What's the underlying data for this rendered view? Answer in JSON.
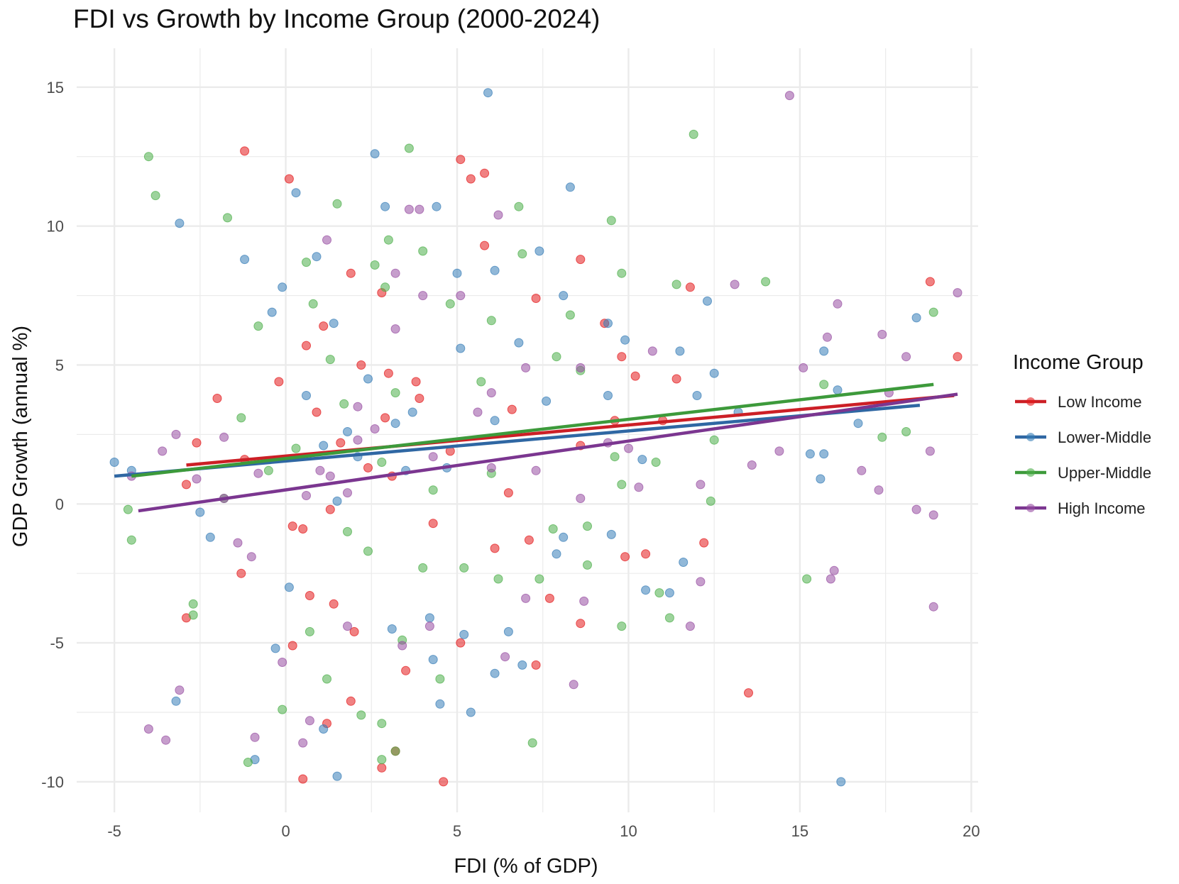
{
  "chart_data": {
    "type": "scatter",
    "title": "FDI vs Growth by Income Group (2000-2024)",
    "xlabel": "FDI (% of GDP)",
    "ylabel": "GDP Growth (annual %)",
    "xlim": [
      -6.1,
      20.2
    ],
    "ylim": [
      -11.1,
      16.4
    ],
    "x_ticks": [
      -5,
      0,
      5,
      10,
      15,
      20
    ],
    "x_tick_labels": [
      "-5",
      "0",
      "5",
      "10",
      "15",
      "20"
    ],
    "y_ticks": [
      -10,
      -5,
      0,
      5,
      10,
      15
    ],
    "y_tick_labels": [
      "-10",
      "-5",
      "0",
      "5",
      "10",
      "15"
    ],
    "grid": true,
    "legend": {
      "title": "Income Group",
      "placement": "right"
    },
    "series": [
      {
        "name": "Low Income",
        "color": "#e41a1c",
        "fit_line": {
          "x": [
            -2.9,
            19.5
          ],
          "y": [
            1.4,
            3.9
          ]
        },
        "points": [
          [
            -1.2,
            12.7
          ],
          [
            0.1,
            11.7
          ],
          [
            5.1,
            12.4
          ],
          [
            5.8,
            11.9
          ],
          [
            5.4,
            11.7
          ],
          [
            8.6,
            8.8
          ],
          [
            5.8,
            9.3
          ],
          [
            7.3,
            7.4
          ],
          [
            11.8,
            7.8
          ],
          [
            18.8,
            8.0
          ],
          [
            19.6,
            5.3
          ],
          [
            9.8,
            5.3
          ],
          [
            10.2,
            4.6
          ],
          [
            11.4,
            4.5
          ],
          [
            9.3,
            6.5
          ],
          [
            3.9,
            3.8
          ],
          [
            3.0,
            4.7
          ],
          [
            2.2,
            5.0
          ],
          [
            1.1,
            6.4
          ],
          [
            0.6,
            5.7
          ],
          [
            -0.2,
            4.4
          ],
          [
            -2.0,
            3.8
          ],
          [
            -2.6,
            2.2
          ],
          [
            -2.9,
            0.7
          ],
          [
            -1.2,
            1.6
          ],
          [
            0.2,
            -0.8
          ],
          [
            0.5,
            -0.9
          ],
          [
            1.3,
            -0.2
          ],
          [
            6.5,
            0.4
          ],
          [
            7.1,
            -1.3
          ],
          [
            6.1,
            -1.6
          ],
          [
            9.9,
            -1.9
          ],
          [
            12.2,
            -1.4
          ],
          [
            10.5,
            -1.8
          ],
          [
            7.7,
            -3.4
          ],
          [
            8.6,
            -4.3
          ],
          [
            7.3,
            -5.8
          ],
          [
            13.5,
            -6.8
          ],
          [
            4.6,
            -10.0
          ],
          [
            0.5,
            -9.9
          ],
          [
            2.8,
            -9.5
          ],
          [
            3.2,
            -8.9
          ],
          [
            1.2,
            -7.9
          ],
          [
            1.9,
            -7.1
          ],
          [
            3.5,
            -6.0
          ],
          [
            5.1,
            -5.0
          ],
          [
            2.0,
            -4.6
          ],
          [
            1.4,
            -3.6
          ],
          [
            0.7,
            -3.3
          ],
          [
            -2.9,
            -4.1
          ],
          [
            -1.3,
            -2.5
          ],
          [
            0.2,
            -5.1
          ],
          [
            1.9,
            8.3
          ],
          [
            2.8,
            7.6
          ],
          [
            3.8,
            4.4
          ],
          [
            2.4,
            1.3
          ],
          [
            1.6,
            2.2
          ],
          [
            3.1,
            1.0
          ],
          [
            0.9,
            3.3
          ],
          [
            4.3,
            -0.7
          ],
          [
            6.6,
            3.4
          ],
          [
            8.6,
            2.1
          ],
          [
            9.6,
            3.0
          ],
          [
            11.0,
            3.0
          ],
          [
            4.8,
            1.9
          ],
          [
            2.9,
            3.1
          ]
        ]
      },
      {
        "name": "Lower-Middle",
        "color": "#377eb8",
        "fit_line": {
          "x": [
            -5.0,
            18.5
          ],
          "y": [
            1.0,
            3.55
          ]
        },
        "points": [
          [
            5.9,
            14.8
          ],
          [
            2.6,
            12.6
          ],
          [
            0.3,
            11.2
          ],
          [
            -3.1,
            10.1
          ],
          [
            2.9,
            10.7
          ],
          [
            4.4,
            10.7
          ],
          [
            8.3,
            11.4
          ],
          [
            -1.2,
            8.8
          ],
          [
            0.9,
            8.9
          ],
          [
            5.0,
            8.3
          ],
          [
            6.1,
            8.4
          ],
          [
            7.4,
            9.1
          ],
          [
            8.1,
            7.5
          ],
          [
            12.3,
            7.3
          ],
          [
            9.9,
            5.9
          ],
          [
            11.5,
            5.5
          ],
          [
            15.7,
            5.5
          ],
          [
            18.4,
            6.7
          ],
          [
            16.1,
            4.1
          ],
          [
            12.5,
            4.7
          ],
          [
            9.4,
            6.5
          ],
          [
            6.8,
            5.8
          ],
          [
            5.1,
            5.6
          ],
          [
            1.4,
            6.5
          ],
          [
            -0.4,
            6.9
          ],
          [
            -5.0,
            1.5
          ],
          [
            -4.5,
            1.2
          ],
          [
            -2.5,
            -0.3
          ],
          [
            -2.2,
            -1.2
          ],
          [
            -3.2,
            -7.1
          ],
          [
            -0.9,
            -9.2
          ],
          [
            -0.3,
            -5.2
          ],
          [
            1.5,
            -9.8
          ],
          [
            1.1,
            -8.1
          ],
          [
            5.4,
            -7.5
          ],
          [
            4.5,
            -7.2
          ],
          [
            6.1,
            -6.1
          ],
          [
            4.3,
            -5.6
          ],
          [
            5.2,
            -4.7
          ],
          [
            6.5,
            -4.6
          ],
          [
            6.9,
            -5.8
          ],
          [
            10.5,
            -3.1
          ],
          [
            11.2,
            -3.2
          ],
          [
            11.6,
            -2.1
          ],
          [
            9.5,
            -1.1
          ],
          [
            7.9,
            -1.8
          ],
          [
            8.1,
            -1.2
          ],
          [
            15.3,
            1.8
          ],
          [
            15.7,
            1.8
          ],
          [
            15.6,
            0.9
          ],
          [
            16.7,
            2.9
          ],
          [
            13.2,
            3.3
          ],
          [
            12.0,
            3.9
          ],
          [
            10.4,
            1.6
          ],
          [
            9.4,
            3.9
          ],
          [
            7.6,
            3.7
          ],
          [
            6.1,
            3.0
          ],
          [
            3.2,
            2.9
          ],
          [
            1.8,
            2.6
          ],
          [
            0.6,
            3.9
          ],
          [
            2.4,
            4.5
          ],
          [
            3.5,
            1.2
          ],
          [
            1.5,
            0.1
          ],
          [
            4.7,
            1.3
          ],
          [
            16.2,
            -10.0
          ],
          [
            3.1,
            -4.5
          ],
          [
            0.1,
            -3.0
          ],
          [
            -0.1,
            7.8
          ],
          [
            2.1,
            1.7
          ],
          [
            3.7,
            3.3
          ],
          [
            1.1,
            2.1
          ],
          [
            4.2,
            -4.1
          ]
        ]
      },
      {
        "name": "Upper-Middle",
        "color": "#4daf4a",
        "fit_line": {
          "x": [
            -4.5,
            18.9
          ],
          "y": [
            1.0,
            4.3
          ]
        },
        "points": [
          [
            -4.0,
            12.5
          ],
          [
            -3.8,
            11.1
          ],
          [
            3.6,
            12.8
          ],
          [
            11.9,
            13.3
          ],
          [
            -1.7,
            10.3
          ],
          [
            1.5,
            10.8
          ],
          [
            6.8,
            10.7
          ],
          [
            9.5,
            10.2
          ],
          [
            3.0,
            9.5
          ],
          [
            4.0,
            9.1
          ],
          [
            0.6,
            8.7
          ],
          [
            2.6,
            8.6
          ],
          [
            6.9,
            9.0
          ],
          [
            9.8,
            8.3
          ],
          [
            11.4,
            7.9
          ],
          [
            14.0,
            8.0
          ],
          [
            18.9,
            6.9
          ],
          [
            15.7,
            4.3
          ],
          [
            17.4,
            2.4
          ],
          [
            18.1,
            2.6
          ],
          [
            12.5,
            2.3
          ],
          [
            12.4,
            0.1
          ],
          [
            15.2,
            -2.7
          ],
          [
            11.2,
            -4.1
          ],
          [
            10.9,
            -3.2
          ],
          [
            9.8,
            -4.4
          ],
          [
            8.8,
            -2.2
          ],
          [
            7.4,
            -2.7
          ],
          [
            7.2,
            -8.6
          ],
          [
            4.5,
            -6.3
          ],
          [
            3.2,
            -8.9
          ],
          [
            2.8,
            -9.2
          ],
          [
            2.8,
            -7.9
          ],
          [
            2.2,
            -7.6
          ],
          [
            -1.1,
            -9.3
          ],
          [
            -0.1,
            -7.4
          ],
          [
            1.2,
            -6.3
          ],
          [
            -2.7,
            -3.6
          ],
          [
            -2.7,
            -4.0
          ],
          [
            -4.5,
            -1.3
          ],
          [
            -4.6,
            -0.2
          ],
          [
            -1.3,
            3.1
          ],
          [
            -0.8,
            6.4
          ],
          [
            0.8,
            7.2
          ],
          [
            2.9,
            7.8
          ],
          [
            4.8,
            7.2
          ],
          [
            6.0,
            6.6
          ],
          [
            8.3,
            6.8
          ],
          [
            8.6,
            4.8
          ],
          [
            7.9,
            5.3
          ],
          [
            5.7,
            4.4
          ],
          [
            3.2,
            4.0
          ],
          [
            1.7,
            3.6
          ],
          [
            0.3,
            2.0
          ],
          [
            -0.5,
            1.2
          ],
          [
            -1.8,
            0.2
          ],
          [
            1.8,
            -1.0
          ],
          [
            2.4,
            -1.7
          ],
          [
            4.0,
            -2.3
          ],
          [
            5.2,
            -2.3
          ],
          [
            6.2,
            -2.7
          ],
          [
            7.8,
            -0.9
          ],
          [
            8.8,
            -0.8
          ],
          [
            9.8,
            0.7
          ],
          [
            10.8,
            1.5
          ],
          [
            9.6,
            1.7
          ],
          [
            6.0,
            1.1
          ],
          [
            4.3,
            0.5
          ],
          [
            2.8,
            1.5
          ],
          [
            1.3,
            5.2
          ],
          [
            0.7,
            -4.6
          ],
          [
            3.4,
            -4.9
          ]
        ]
      },
      {
        "name": "High Income",
        "color": "#984ea3",
        "fit_line": {
          "x": [
            -4.3,
            19.6
          ],
          "y": [
            -0.25,
            3.95
          ]
        },
        "points": [
          [
            14.7,
            14.7
          ],
          [
            19.6,
            7.6
          ],
          [
            16.1,
            7.2
          ],
          [
            15.8,
            6.0
          ],
          [
            17.4,
            6.1
          ],
          [
            18.1,
            5.3
          ],
          [
            15.1,
            4.9
          ],
          [
            17.6,
            4.0
          ],
          [
            18.8,
            1.9
          ],
          [
            16.8,
            1.2
          ],
          [
            17.3,
            0.5
          ],
          [
            18.4,
            -0.2
          ],
          [
            18.9,
            -0.4
          ],
          [
            18.9,
            -3.7
          ],
          [
            16.0,
            -2.4
          ],
          [
            15.9,
            -2.7
          ],
          [
            12.1,
            -2.8
          ],
          [
            11.8,
            -4.4
          ],
          [
            12.1,
            0.7
          ],
          [
            13.6,
            1.4
          ],
          [
            14.4,
            1.9
          ],
          [
            13.1,
            7.9
          ],
          [
            10.7,
            5.5
          ],
          [
            8.6,
            4.9
          ],
          [
            7.0,
            4.9
          ],
          [
            6.0,
            4.0
          ],
          [
            5.1,
            7.5
          ],
          [
            4.0,
            7.5
          ],
          [
            3.6,
            10.6
          ],
          [
            3.9,
            10.6
          ],
          [
            6.2,
            10.4
          ],
          [
            1.2,
            9.5
          ],
          [
            3.2,
            8.3
          ],
          [
            -4.0,
            -8.1
          ],
          [
            -3.5,
            -8.5
          ],
          [
            -3.1,
            -6.7
          ],
          [
            -3.2,
            2.5
          ],
          [
            -3.6,
            1.9
          ],
          [
            -1.8,
            2.4
          ],
          [
            -1.8,
            0.2
          ],
          [
            -1.4,
            -1.4
          ],
          [
            -1.0,
            -1.9
          ],
          [
            -0.9,
            -8.4
          ],
          [
            -0.1,
            -5.7
          ],
          [
            0.5,
            -8.6
          ],
          [
            0.7,
            -7.8
          ],
          [
            1.8,
            -4.4
          ],
          [
            3.4,
            -5.1
          ],
          [
            4.2,
            -4.4
          ],
          [
            6.4,
            -5.5
          ],
          [
            7.0,
            -3.4
          ],
          [
            8.4,
            -6.5
          ],
          [
            8.7,
            -3.5
          ],
          [
            8.6,
            0.2
          ],
          [
            9.4,
            2.2
          ],
          [
            10.3,
            0.6
          ],
          [
            10.0,
            2.0
          ],
          [
            7.3,
            1.2
          ],
          [
            6.0,
            1.3
          ],
          [
            4.3,
            1.7
          ],
          [
            2.1,
            2.3
          ],
          [
            1.3,
            1.0
          ],
          [
            0.6,
            0.3
          ],
          [
            -0.8,
            1.1
          ],
          [
            -2.6,
            0.9
          ],
          [
            -4.5,
            1.0
          ],
          [
            3.2,
            6.3
          ],
          [
            5.6,
            3.3
          ],
          [
            2.1,
            3.5
          ],
          [
            1.0,
            1.2
          ],
          [
            2.6,
            2.7
          ],
          [
            1.8,
            0.4
          ]
        ]
      }
    ]
  }
}
